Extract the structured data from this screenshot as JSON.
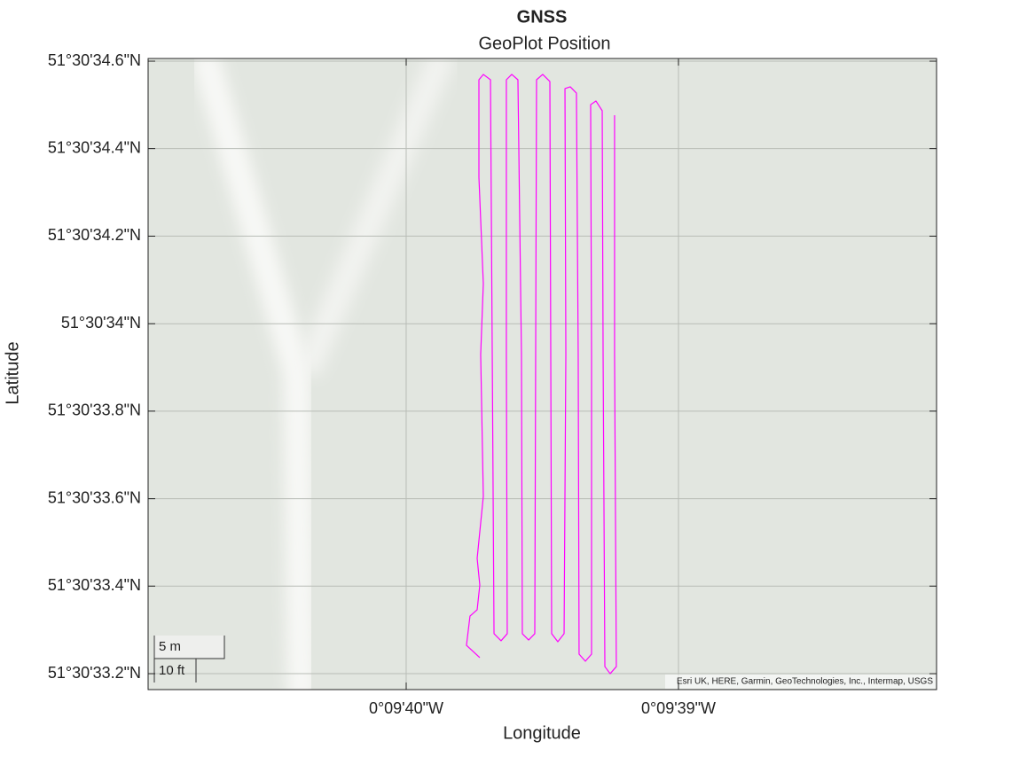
{
  "chart_data": {
    "type": "line",
    "title": "GNSS",
    "subtitle": "GeoPlot Position",
    "xlabel": "Longitude",
    "ylabel": "Latitude",
    "attribution": "Esri UK, HERE, Garmin, GeoTechnologies, Inc., Intermap, USGS",
    "scale_bar": {
      "metric": "5 m",
      "imperial": "10 ft"
    },
    "color": "#ff00ff",
    "grid": true,
    "xlim": [
      -0.1613744,
      -0.16057
    ],
    "ylim": [
      51.5092121,
      51.5096128
    ],
    "xticks": [
      {
        "value": -0.1611111,
        "label": "0°09'40\"W"
      },
      {
        "value": -0.1608333,
        "label": "0°09'39\"W"
      }
    ],
    "yticks": [
      {
        "value": 51.5092222,
        "label": "51°30'33.2\"N"
      },
      {
        "value": 51.5092778,
        "label": "51°30'33.4\"N"
      },
      {
        "value": 51.5093333,
        "label": "51°30'33.6\"N"
      },
      {
        "value": 51.5093889,
        "label": "51°30'33.8\"N"
      },
      {
        "value": 51.5094444,
        "label": "51°30'34\"N"
      },
      {
        "value": 51.5095,
        "label": "51°30'34.2\"N"
      },
      {
        "value": 51.5095556,
        "label": "51°30'34.4\"N"
      },
      {
        "value": 51.5096111,
        "label": "51°30'34.6\"N"
      }
    ],
    "x": [
      -0.161036,
      -0.1610496,
      -0.161046,
      -0.1610387,
      -0.161036,
      -0.1610387,
      -0.1610324,
      -0.1610351,
      -0.1610324,
      -0.1610369,
      -0.1610369,
      -0.1610324,
      -0.1610251,
      -0.1610233,
      -0.1610215,
      -0.1610143,
      -0.161008,
      -0.1610089,
      -0.1610089,
      -0.1610034,
      -0.1609971,
      -0.1609935,
      -0.1609926,
      -0.1609862,
      -0.1609799,
      -0.160979,
      -0.1609781,
      -0.1609718,
      -0.1609645,
      -0.1609636,
      -0.1609627,
      -0.1609564,
      -0.16095,
      -0.1609482,
      -0.1609491,
      -0.1609437,
      -0.1609374,
      -0.1609356,
      -0.1609347,
      -0.1609283,
      -0.160922,
      -0.160922,
      -0.1609229,
      -0.1609175,
      -0.1609111,
      -0.1609102,
      -0.1609084,
      -0.160903,
      -0.1608967,
      -0.1608985,
      -0.1608985
    ],
    "values": [
      51.5092324,
      51.5092402,
      51.5092588,
      51.5092628,
      51.5092785,
      51.5092954,
      51.5093348,
      51.5094248,
      51.5094698,
      51.5095374,
      51.5095993,
      51.5096027,
      51.5095993,
      51.5094248,
      51.5092476,
      51.5092431,
      51.5092476,
      51.5094248,
      51.5095993,
      51.5096027,
      51.5095993,
      51.5094248,
      51.5092476,
      51.5092436,
      51.5092476,
      51.5094248,
      51.5095993,
      51.5096027,
      51.5095982,
      51.5094248,
      51.5092476,
      51.5092425,
      51.5092476,
      51.5094248,
      51.5095937,
      51.5095948,
      51.5095908,
      51.5094248,
      51.5092346,
      51.5092301,
      51.5092346,
      51.5094248,
      51.5095835,
      51.5095858,
      51.5095796,
      51.5094248,
      51.5092267,
      51.5092222,
      51.5092267,
      51.5094248,
      51.5095768
    ]
  }
}
